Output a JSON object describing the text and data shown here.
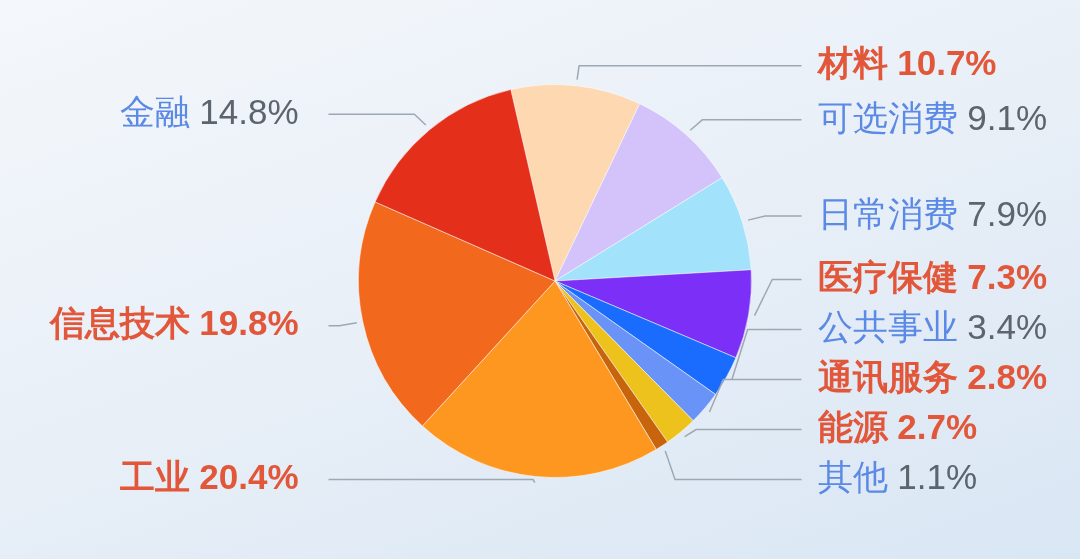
{
  "chart_data": {
    "type": "pie",
    "categories": [
      "材料",
      "可选消费",
      "日常消费",
      "医疗保健",
      "公共事业",
      "通讯服务",
      "能源",
      "其他",
      "工业",
      "信息技术",
      "金融"
    ],
    "values": [
      10.7,
      9.1,
      7.9,
      7.3,
      3.4,
      2.8,
      2.7,
      1.1,
      20.4,
      19.8,
      14.8
    ],
    "colors": [
      "#fdd8b0",
      "#d3c3fa",
      "#a2e3fb",
      "#7b2ff7",
      "#1a6cff",
      "#6a93f8",
      "#eec21c",
      "#c8650c",
      "#fd9720",
      "#f2691e",
      "#e4301a"
    ],
    "value_labels": [
      "10.7%",
      "9.1%",
      "7.9%",
      "7.3%",
      "3.4%",
      "2.8%",
      "2.7%",
      "1.1%",
      "20.4%",
      "19.8%",
      "14.8%"
    ]
  }
}
